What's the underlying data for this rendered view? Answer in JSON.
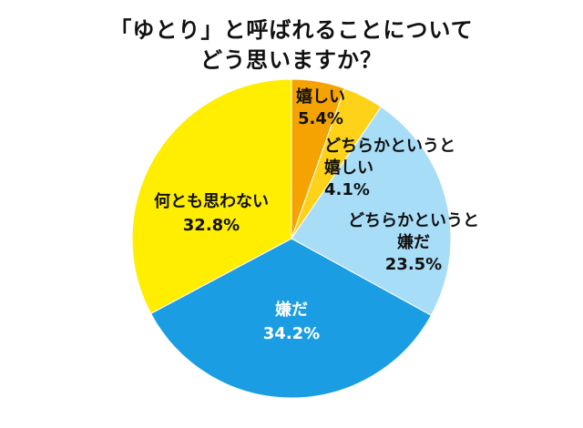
{
  "chart_data": {
    "type": "pie",
    "title": [
      "「ゆとり」と呼ばれることについて",
      "どう思いますか？"
    ],
    "categories": [
      "嬉しい",
      "どちらかというと嬉しい",
      "どちらかというと嫌だ",
      "嫌だ",
      "何とも思わない"
    ],
    "values": [
      5.4,
      4.1,
      23.5,
      34.2,
      32.8
    ],
    "unit": "%",
    "colors": [
      "#F4A300",
      "#FFD21A",
      "#A8DDF7",
      "#1B9DE3",
      "#FFEE00"
    ],
    "label_colors": [
      "#111111",
      "#111111",
      "#111111",
      "#ffffff",
      "#111111"
    ],
    "start_angle": "12 o'clock",
    "direction": "clockwise",
    "slice_labels": [
      {
        "lines": [
          "嬉しい",
          "5.4%"
        ]
      },
      {
        "lines": [
          "どちらかというと",
          "嬉しい",
          "4.1%"
        ]
      },
      {
        "lines": [
          "どちらかというと",
          "嫌だ",
          "23.5%"
        ]
      },
      {
        "lines": [
          "嫌だ",
          "34.2%"
        ]
      },
      {
        "lines": [
          "何とも思わない",
          "32.8%"
        ]
      }
    ]
  }
}
